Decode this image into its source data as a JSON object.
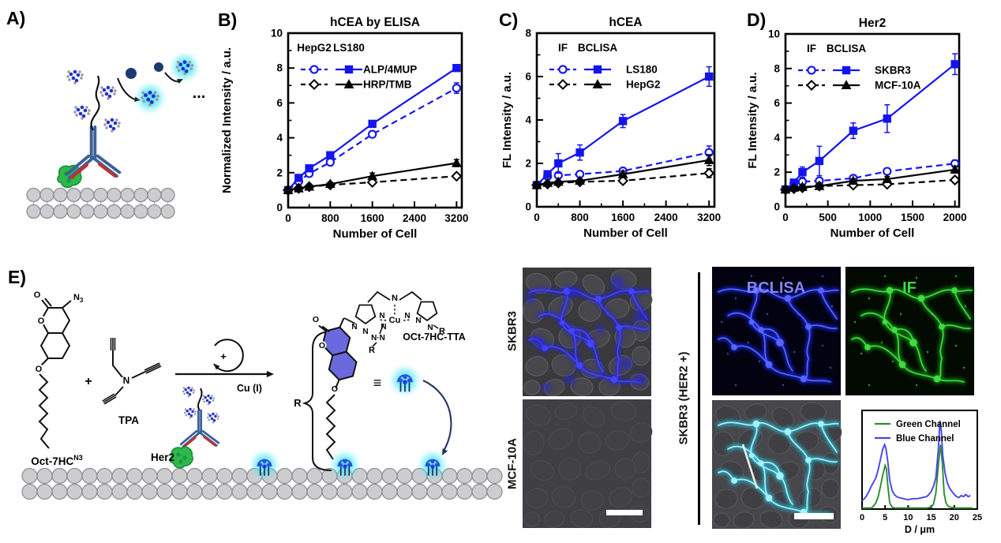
{
  "panels": {
    "a": "A)",
    "b": "B)",
    "c": "C)",
    "d": "D)",
    "e": "E)"
  },
  "colors": {
    "series_blue": "#1414f0",
    "series_black": "#000000",
    "bclisa_text": "#8585f8",
    "if_text": "#35e035",
    "cyan_glow": "#3fdef2",
    "profile_green": "#2e8b2e",
    "profile_blue": "#4646e8"
  },
  "chart_data": [
    {
      "type": "line",
      "title": "hCEA by ELISA",
      "xlabel": "Number of Cell",
      "ylabel": "Normalized Intensity / a.u.",
      "xlim": [
        0,
        3300
      ],
      "ylim": [
        0,
        10
      ],
      "xticks": [
        0,
        800,
        1600,
        2400,
        3200
      ],
      "xminor": [
        400,
        1200,
        2000,
        2800
      ],
      "yticks": [
        0,
        2,
        4,
        6,
        8,
        10
      ],
      "yminor": [
        1,
        3,
        5,
        7,
        9
      ],
      "legend": {
        "columns": [
          "HepG2",
          "LS180"
        ],
        "rows": [
          {
            "label": "ALP/4MUP",
            "series": [
              0,
              1
            ]
          },
          {
            "label": "HRP/TMB",
            "series": [
              2,
              3
            ]
          }
        ]
      },
      "series": [
        {
          "name": "HepG2 ALP/4MUP",
          "color": "#1414f0",
          "dash": true,
          "marker": "circle",
          "open": true,
          "x": [
            0,
            200,
            400,
            800,
            1600,
            3200
          ],
          "y": [
            1.0,
            1.5,
            1.95,
            2.6,
            4.2,
            6.85
          ],
          "err": [
            0,
            0,
            0,
            0,
            0.15,
            0.3
          ]
        },
        {
          "name": "LS180 ALP/4MUP",
          "color": "#1414f0",
          "dash": false,
          "marker": "square",
          "open": false,
          "x": [
            0,
            200,
            400,
            800,
            1600,
            3200
          ],
          "y": [
            1.0,
            1.7,
            2.25,
            3.0,
            4.8,
            8.0
          ],
          "err": [
            0,
            0,
            0,
            0,
            0.12,
            0.18
          ]
        },
        {
          "name": "HepG2 HRP/TMB",
          "color": "#000000",
          "dash": true,
          "marker": "diamond",
          "open": true,
          "x": [
            0,
            200,
            400,
            800,
            1600,
            3200
          ],
          "y": [
            1.0,
            1.1,
            1.2,
            1.3,
            1.45,
            1.8
          ],
          "err": [
            0,
            0,
            0,
            0,
            0.12,
            0.1
          ]
        },
        {
          "name": "LS180 HRP/TMB",
          "color": "#000000",
          "dash": false,
          "marker": "triangle",
          "open": false,
          "x": [
            0,
            200,
            400,
            800,
            1600,
            3200
          ],
          "y": [
            1.0,
            1.1,
            1.2,
            1.35,
            1.8,
            2.55
          ],
          "err": [
            0,
            0,
            0,
            0.08,
            0.18,
            0.2
          ]
        }
      ]
    },
    {
      "type": "line",
      "title": "hCEA",
      "xlabel": "Number of Cell",
      "ylabel": "FL Intensity / a.u.",
      "xlim": [
        0,
        3300
      ],
      "ylim": [
        0,
        8
      ],
      "xticks": [
        0,
        800,
        1600,
        2400,
        3200
      ],
      "xminor": [
        400,
        1200,
        2000,
        2800
      ],
      "yticks": [
        0,
        2,
        4,
        6,
        8
      ],
      "yminor": [
        1,
        3,
        5,
        7
      ],
      "legend": {
        "columns": [
          "IF",
          "BCLISA"
        ],
        "rows": [
          {
            "label": "LS180",
            "series": [
              0,
              1
            ]
          },
          {
            "label": "HepG2",
            "series": [
              2,
              3
            ]
          }
        ]
      },
      "series": [
        {
          "name": "IF LS180",
          "color": "#1414f0",
          "dash": true,
          "marker": "circle",
          "open": true,
          "x": [
            0,
            200,
            400,
            800,
            1600,
            3200
          ],
          "y": [
            1.0,
            1.4,
            1.45,
            1.5,
            1.65,
            2.5
          ],
          "err": [
            0,
            0.1,
            0.1,
            0.1,
            0.12,
            0.3
          ]
        },
        {
          "name": "BCLISA LS180",
          "color": "#1414f0",
          "dash": false,
          "marker": "square",
          "open": false,
          "x": [
            0,
            200,
            400,
            800,
            1600,
            3200
          ],
          "y": [
            1.0,
            1.5,
            2.0,
            2.5,
            3.95,
            6.0
          ],
          "err": [
            0,
            0.15,
            0.45,
            0.35,
            0.3,
            0.45
          ]
        },
        {
          "name": "IF HepG2",
          "color": "#000000",
          "dash": true,
          "marker": "diamond",
          "open": true,
          "x": [
            0,
            200,
            400,
            800,
            1600,
            3200
          ],
          "y": [
            1.0,
            1.05,
            1.1,
            1.15,
            1.2,
            1.55
          ],
          "err": [
            0,
            0,
            0,
            0.08,
            0.12,
            0.2
          ]
        },
        {
          "name": "BCLISA HepG2",
          "color": "#000000",
          "dash": false,
          "marker": "triangle",
          "open": false,
          "x": [
            0,
            200,
            400,
            800,
            1600,
            3200
          ],
          "y": [
            1.0,
            1.1,
            1.15,
            1.2,
            1.5,
            2.15
          ],
          "err": [
            0,
            0,
            0,
            0.08,
            0.15,
            0.25
          ]
        }
      ]
    },
    {
      "type": "line",
      "title": "Her2",
      "xlabel": "Number of Cell",
      "ylabel": "FL Intensity / a.u.",
      "xlim": [
        0,
        2050
      ],
      "ylim": [
        0,
        10
      ],
      "xticks": [
        0,
        500,
        1000,
        1500,
        2000
      ],
      "xminor": [
        250,
        750,
        1250,
        1750
      ],
      "yticks": [
        0,
        2,
        4,
        6,
        8,
        10
      ],
      "yminor": [
        1,
        3,
        5,
        7,
        9
      ],
      "legend": {
        "columns": [
          "IF",
          "BCLISA"
        ],
        "rows": [
          {
            "label": "SKBR3",
            "series": [
              0,
              1
            ]
          },
          {
            "label": "MCF-10A",
            "series": [
              2,
              3
            ]
          }
        ]
      },
      "series": [
        {
          "name": "IF SKBR3",
          "color": "#1414f0",
          "dash": true,
          "marker": "circle",
          "open": true,
          "x": [
            0,
            100,
            200,
            400,
            800,
            1200,
            2000
          ],
          "y": [
            1.0,
            1.35,
            1.45,
            1.5,
            1.65,
            2.05,
            2.5
          ],
          "err": [
            0,
            0.08,
            0.1,
            0.1,
            0.12,
            0.15,
            0.2
          ]
        },
        {
          "name": "BCLISA SKBR3",
          "color": "#1414f0",
          "dash": false,
          "marker": "square",
          "open": false,
          "x": [
            0,
            100,
            200,
            400,
            800,
            1200,
            2000
          ],
          "y": [
            1.0,
            1.4,
            2.0,
            2.65,
            4.4,
            5.1,
            8.25
          ],
          "err": [
            0,
            0.12,
            0.3,
            0.85,
            0.45,
            0.8,
            0.6
          ]
        },
        {
          "name": "IF MCF-10A",
          "color": "#000000",
          "dash": true,
          "marker": "diamond",
          "open": true,
          "x": [
            0,
            100,
            200,
            400,
            800,
            1200,
            2000
          ],
          "y": [
            1.0,
            1.05,
            1.1,
            1.2,
            1.25,
            1.3,
            1.55
          ],
          "err": [
            0,
            0,
            0.05,
            0.08,
            0.1,
            0.12,
            0.15
          ]
        },
        {
          "name": "BCLISA MCF-10A",
          "color": "#000000",
          "dash": false,
          "marker": "triangle",
          "open": false,
          "x": [
            0,
            100,
            200,
            400,
            800,
            1200,
            2000
          ],
          "y": [
            1.0,
            1.1,
            1.15,
            1.2,
            1.5,
            1.6,
            2.15
          ],
          "err": [
            0,
            0,
            0.05,
            0.08,
            0.12,
            0.15,
            0.2
          ]
        }
      ]
    },
    {
      "type": "line",
      "title": "",
      "xlabel": "D / μm",
      "ylabel": "",
      "xlim": [
        0,
        25
      ],
      "ylim": [
        0,
        0.95
      ],
      "xticks": [
        0,
        5,
        10,
        15,
        20,
        25
      ],
      "legend_simple": [
        {
          "label": "Green Channel",
          "color": "#2e8b2e"
        },
        {
          "label": "Blue Channel",
          "color": "#4646e8"
        }
      ],
      "series": [
        {
          "name": "Green Channel",
          "color": "#2e8b2e",
          "dash": false,
          "marker": "none",
          "x": [
            0,
            1,
            2,
            2.5,
            3,
            3.5,
            4,
            4.5,
            5,
            5.3,
            5.6,
            6,
            6.5,
            7,
            8,
            10,
            12,
            14,
            15,
            15.5,
            16,
            16.5,
            17,
            17.4,
            17.8,
            18.2,
            18.6,
            19,
            20,
            21,
            22,
            23,
            24
          ],
          "y": [
            0.01,
            0.01,
            0.01,
            0.03,
            0.06,
            0.12,
            0.22,
            0.33,
            0.42,
            0.38,
            0.22,
            0.06,
            0.02,
            0.01,
            0.01,
            0.01,
            0.01,
            0.01,
            0.02,
            0.05,
            0.15,
            0.4,
            0.62,
            0.45,
            0.15,
            0.06,
            0.03,
            0.02,
            0.01,
            0.01,
            0.01,
            0.01,
            0.01
          ]
        },
        {
          "name": "Blue Channel",
          "color": "#4646e8",
          "dash": false,
          "marker": "none",
          "x": [
            0,
            0.5,
            1,
            1.5,
            2,
            2.5,
            3,
            3.5,
            4,
            4.5,
            4.9,
            5.2,
            5.6,
            6,
            6.5,
            7,
            7.5,
            8,
            9,
            10,
            11,
            12,
            13,
            14,
            14.5,
            15,
            15.5,
            16,
            16.5,
            16.9,
            17.2,
            17.5,
            18,
            18.5,
            19,
            19.5,
            20,
            20.5,
            21,
            21.5,
            22,
            22.5,
            23,
            23.5
          ],
          "y": [
            0.08,
            0.1,
            0.13,
            0.17,
            0.22,
            0.26,
            0.3,
            0.38,
            0.48,
            0.58,
            0.62,
            0.58,
            0.45,
            0.28,
            0.18,
            0.14,
            0.12,
            0.11,
            0.1,
            0.09,
            0.1,
            0.1,
            0.11,
            0.12,
            0.14,
            0.17,
            0.22,
            0.3,
            0.55,
            0.85,
            0.75,
            0.52,
            0.35,
            0.25,
            0.2,
            0.17,
            0.14,
            0.12,
            0.11,
            0.13,
            0.12,
            0.14,
            0.12,
            0.13
          ]
        }
      ]
    }
  ],
  "scheme": {
    "reactant_base": "Oct-7HC",
    "reactant_sup": "N3",
    "azide_n": "N",
    "azide_sub": "3",
    "o": "O",
    "n": "N",
    "cu": "Cu",
    "r": "R",
    "plus": "+",
    "cycle_plus": "+",
    "tpa": "TPA",
    "catalyst": "Cu (I)",
    "her2": "Her2",
    "product": "OCt-7HC-TTA",
    "equiv": "≡",
    "dots": "...",
    "ndotn": "N·N"
  },
  "microscopy": {
    "left_labels": [
      "SKBR3",
      "MCF-10A"
    ],
    "right_label": "SKBR3 (HER2 +)",
    "bclisa_label": "BCLISA",
    "if_label": "IF"
  }
}
